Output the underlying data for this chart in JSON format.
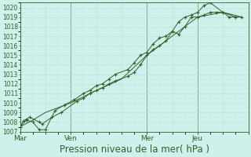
{
  "bg_color": "#cff0eb",
  "grid_major_color": "#b8ddd5",
  "grid_minor_color": "#cce8e2",
  "line_color": "#2d6228",
  "marker_color": "#2d6228",
  "xlabel": "Pression niveau de la mer( hPa )",
  "xlabel_fontsize": 8.5,
  "ylim": [
    1007,
    1020.5
  ],
  "ytick_min": 1007,
  "ytick_max": 1020,
  "xtick_labels": [
    "Mar",
    "Ven",
    "Mer",
    "Jeu"
  ],
  "xtick_positions": [
    0,
    48,
    120,
    168
  ],
  "xlim_max": 216,
  "series1_x": [
    0,
    3,
    6,
    9,
    18,
    21,
    30,
    39,
    54,
    60,
    66,
    72,
    78,
    84,
    90,
    102,
    108,
    114,
    120,
    126,
    132,
    138,
    144,
    150,
    156,
    162,
    168,
    174,
    180,
    186,
    192,
    198,
    204,
    210
  ],
  "series1_y": [
    1007.5,
    1008.1,
    1008.3,
    1008.5,
    1008.0,
    1007.8,
    1008.5,
    1009.0,
    1010.2,
    1010.5,
    1011.0,
    1011.3,
    1011.6,
    1012.0,
    1012.3,
    1012.8,
    1013.2,
    1014.0,
    1015.0,
    1015.6,
    1016.0,
    1016.5,
    1017.5,
    1017.2,
    1018.0,
    1019.0,
    1019.0,
    1019.2,
    1019.5,
    1019.5,
    1019.5,
    1019.0,
    1019.0,
    1019.0
  ],
  "series2_x": [
    0,
    6,
    12,
    18,
    24,
    33,
    42,
    51,
    60,
    66,
    72,
    78,
    84,
    90,
    102,
    108,
    114,
    120,
    126,
    132,
    138,
    144,
    150,
    156,
    162,
    168,
    174,
    180,
    192,
    204
  ],
  "series2_y": [
    1007.5,
    1008.2,
    1008.0,
    1007.2,
    1007.2,
    1009.2,
    1009.8,
    1010.3,
    1011.0,
    1011.3,
    1011.8,
    1012.0,
    1012.5,
    1013.0,
    1013.5,
    1014.2,
    1015.0,
    1015.3,
    1016.2,
    1016.8,
    1017.0,
    1017.5,
    1018.5,
    1019.0,
    1019.2,
    1019.5,
    1020.2,
    1020.5,
    1019.5,
    1019.0
  ],
  "series3_x": [
    0,
    12,
    24,
    48,
    72,
    96,
    120,
    144,
    168,
    192,
    210
  ],
  "series3_y": [
    1007.5,
    1008.2,
    1009.0,
    1010.0,
    1011.3,
    1012.5,
    1015.0,
    1017.0,
    1019.0,
    1019.5,
    1019.0
  ]
}
